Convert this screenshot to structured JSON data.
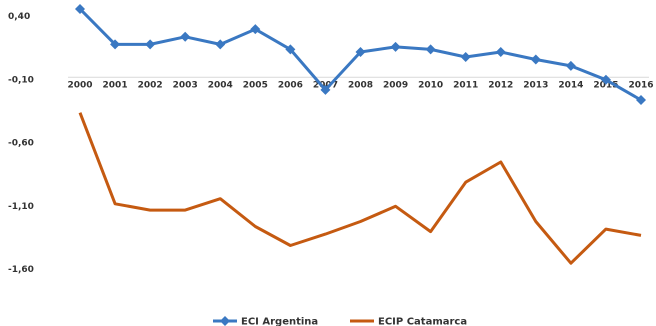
{
  "chart_data": {
    "type": "line",
    "categories": [
      "2000",
      "2001",
      "2002",
      "2003",
      "2004",
      "2005",
      "2006",
      "2007",
      "2008",
      "2009",
      "2010",
      "2011",
      "2012",
      "2013",
      "2014",
      "2015",
      "2016"
    ],
    "series": [
      {
        "name": "ECI Argentina",
        "color": "#3a78c2",
        "marker": "diamond",
        "values": [
          0.44,
          0.16,
          0.16,
          0.22,
          0.16,
          0.28,
          0.12,
          -0.2,
          0.1,
          0.14,
          0.12,
          0.06,
          0.1,
          0.04,
          -0.01,
          -0.12,
          -0.28
        ]
      },
      {
        "name": "ECIP Catamarca",
        "color": "#c55a11",
        "marker": "none",
        "values": [
          -0.38,
          -1.1,
          -1.15,
          -1.15,
          -1.06,
          -1.28,
          -1.43,
          -1.34,
          -1.24,
          -1.12,
          -1.32,
          -0.93,
          -0.77,
          -1.24,
          -1.57,
          -1.3,
          -1.35
        ]
      }
    ],
    "yticks": [
      "0,40",
      "-0,10",
      "-0,60",
      "-1,10",
      "-1,60"
    ],
    "ytick_values": [
      0.4,
      -0.1,
      -0.6,
      -1.1,
      -1.6
    ],
    "ylim": [
      -1.7,
      0.5
    ],
    "grid": false,
    "legend": "bottom",
    "x_axis_at": -0.1
  }
}
